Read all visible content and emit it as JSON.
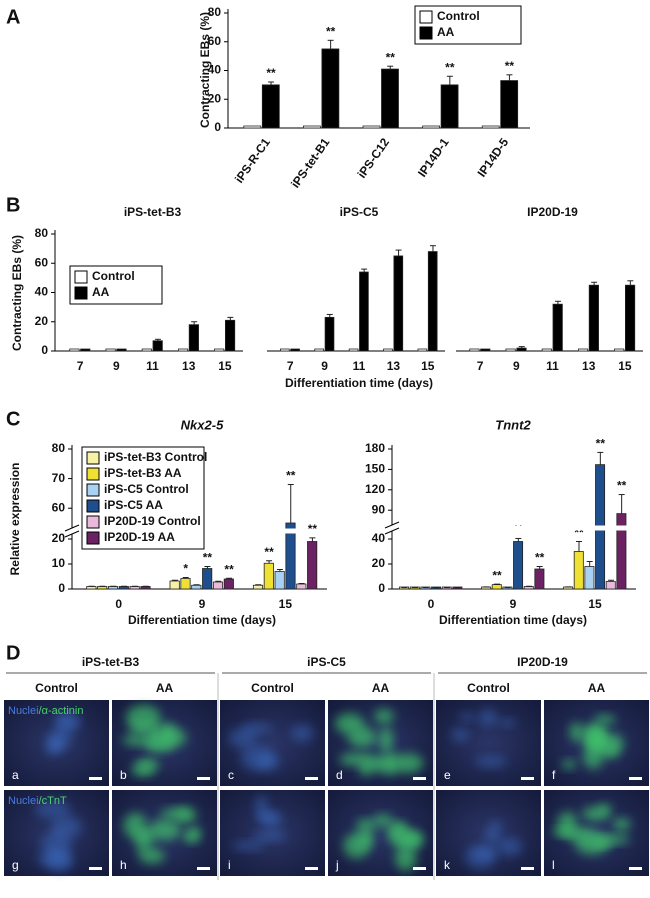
{
  "panel_labels": [
    "A",
    "B",
    "C",
    "D"
  ],
  "chart_data": [
    {
      "type": "bar",
      "ylabel": "Contracting EBs (%)",
      "categories": [
        "iPS-R-C1",
        "iPS-tet-B1",
        "iPS-C12",
        "IP14D-1",
        "IP14D-5"
      ],
      "series": [
        {
          "name": "Control",
          "color": "#ffffff",
          "values": [
            0,
            0,
            0,
            0,
            0
          ]
        },
        {
          "name": "AA",
          "color": "#000000",
          "values": [
            30,
            55,
            41,
            30,
            33
          ],
          "errors": [
            2,
            6,
            2,
            6,
            4
          ],
          "significance": [
            "**",
            "**",
            "**",
            "**",
            "**"
          ]
        }
      ],
      "ylim": [
        0,
        80
      ],
      "yticks": [
        0,
        20,
        40,
        60,
        80
      ],
      "legend": "upper right"
    },
    {
      "type": "bar",
      "title": "iPS-tet-B3",
      "ylabel": "Contracting EBs (%)",
      "categories": [
        "7",
        "9",
        "11",
        "13",
        "15"
      ],
      "series": [
        {
          "name": "Control",
          "color": "#ffffff",
          "values": [
            0,
            0,
            0,
            0,
            0
          ]
        },
        {
          "name": "AA",
          "color": "#000000",
          "values": [
            0,
            0,
            7,
            18,
            21
          ],
          "errors": [
            null,
            null,
            1,
            2,
            2
          ]
        }
      ],
      "ylim": [
        0,
        80
      ],
      "yticks": [
        0,
        20,
        40,
        60,
        80
      ],
      "legend": "upper left"
    },
    {
      "type": "bar",
      "title": "iPS-C5",
      "xlabel": "Differentiation time (days)",
      "categories": [
        "7",
        "9",
        "11",
        "13",
        "15"
      ],
      "series": [
        {
          "color": "#ffffff",
          "values": [
            0,
            0,
            0,
            0,
            0
          ]
        },
        {
          "color": "#000000",
          "values": [
            0,
            23,
            54,
            65,
            68
          ],
          "errors": [
            null,
            2,
            2,
            4,
            4
          ]
        }
      ],
      "ylim": [
        0,
        80
      ]
    },
    {
      "type": "bar",
      "title": "IP20D-19",
      "categories": [
        "7",
        "9",
        "11",
        "13",
        "15"
      ],
      "series": [
        {
          "color": "#ffffff",
          "values": [
            0,
            0,
            0,
            0,
            0
          ]
        },
        {
          "color": "#000000",
          "values": [
            0,
            2,
            32,
            45,
            45
          ],
          "errors": [
            null,
            1,
            2,
            2,
            3
          ]
        }
      ],
      "ylim": [
        0,
        80
      ]
    },
    {
      "type": "bar",
      "title": "Nkx2-5",
      "ylabel": "Relative expression",
      "xlabel": "Differentiation time (days)",
      "categories": [
        "0",
        "9",
        "15"
      ],
      "series": [
        {
          "name": "iPS-tet-B3 Control",
          "color": "#f7f1a6",
          "values": [
            1,
            3.2,
            1.5
          ],
          "errors": [
            0.1,
            0.3,
            0.2
          ]
        },
        {
          "name": "iPS-tet-B3 AA",
          "color": "#efe034",
          "values": [
            1,
            4.2,
            10.3
          ],
          "errors": [
            0.1,
            0.4,
            1
          ],
          "significance": [
            null,
            "*",
            "**"
          ]
        },
        {
          "name": "iPS-C5 Control",
          "color": "#a9d1f1",
          "values": [
            1,
            1.5,
            7
          ],
          "errors": [
            0.1,
            0.2,
            0.8
          ]
        },
        {
          "name": "iPS-C5 AA",
          "color": "#1f4e8c",
          "values": [
            1,
            8.2,
            55
          ],
          "errors": [
            0.1,
            0.8,
            13
          ],
          "significance": [
            null,
            "**",
            "**"
          ]
        },
        {
          "name": "IP20D-19 Control",
          "color": "#e9bada",
          "values": [
            1,
            2.8,
            2
          ],
          "errors": [
            0.1,
            0.3,
            0.2
          ]
        },
        {
          "name": "IP20D-19 AA",
          "color": "#6b2262",
          "values": [
            1,
            4,
            19
          ],
          "errors": [
            0.1,
            0.3,
            3.5
          ],
          "significance": [
            null,
            "**",
            "**"
          ]
        }
      ],
      "ylim": [
        0,
        80
      ],
      "ybreak": [
        20,
        55
      ],
      "yticks": [
        0,
        10,
        20,
        60,
        70,
        80
      ],
      "legend": "upper left"
    },
    {
      "type": "bar",
      "title": "Tnnt2",
      "xlabel": "Differentiation time (days)",
      "categories": [
        "0",
        "9",
        "15"
      ],
      "series": [
        {
          "color": "#f7f1a6",
          "values": [
            1,
            1.5,
            1.5
          ],
          "errors": [
            0.1,
            0.2,
            0.2
          ]
        },
        {
          "color": "#efe034",
          "values": [
            1,
            3.5,
            30
          ],
          "errors": [
            0.1,
            0.4,
            8
          ],
          "significance": [
            null,
            "**",
            "**"
          ]
        },
        {
          "color": "#a9d1f1",
          "values": [
            1,
            1,
            18
          ],
          "errors": [
            0.1,
            0.1,
            4
          ]
        },
        {
          "color": "#1f4e8c",
          "values": [
            1,
            38,
            157
          ],
          "errors": [
            0.1,
            3,
            18
          ],
          "significance": [
            null,
            "**",
            "**"
          ]
        },
        {
          "color": "#e9bada",
          "values": [
            1,
            2,
            6
          ],
          "errors": [
            0.1,
            0.2,
            1
          ]
        },
        {
          "color": "#6b2262",
          "values": [
            1,
            16,
            85
          ],
          "errors": [
            0.1,
            2,
            28
          ],
          "significance": [
            null,
            "**",
            "**"
          ]
        }
      ],
      "ylim": [
        0,
        180
      ],
      "ybreak": [
        40,
        80
      ],
      "yticks": [
        0,
        20,
        40,
        90,
        120,
        150,
        180
      ]
    }
  ],
  "panel_d": {
    "groups": [
      {
        "name": "iPS-tet-B3",
        "conditions": [
          "Control",
          "AA"
        ]
      },
      {
        "name": "iPS-C5",
        "conditions": [
          "Control",
          "AA"
        ]
      },
      {
        "name": "IP20D-19",
        "conditions": [
          "Control",
          "AA"
        ]
      }
    ],
    "rows": [
      {
        "stain_nuclei": "Nuclei",
        "stain_marker": "/α-actinin",
        "letters": [
          "a",
          "b",
          "c",
          "d",
          "e",
          "f"
        ]
      },
      {
        "stain_nuclei": "Nuclei",
        "stain_marker": "/cTnT",
        "letters": [
          "g",
          "h",
          "i",
          "j",
          "k",
          "l"
        ]
      }
    ]
  }
}
